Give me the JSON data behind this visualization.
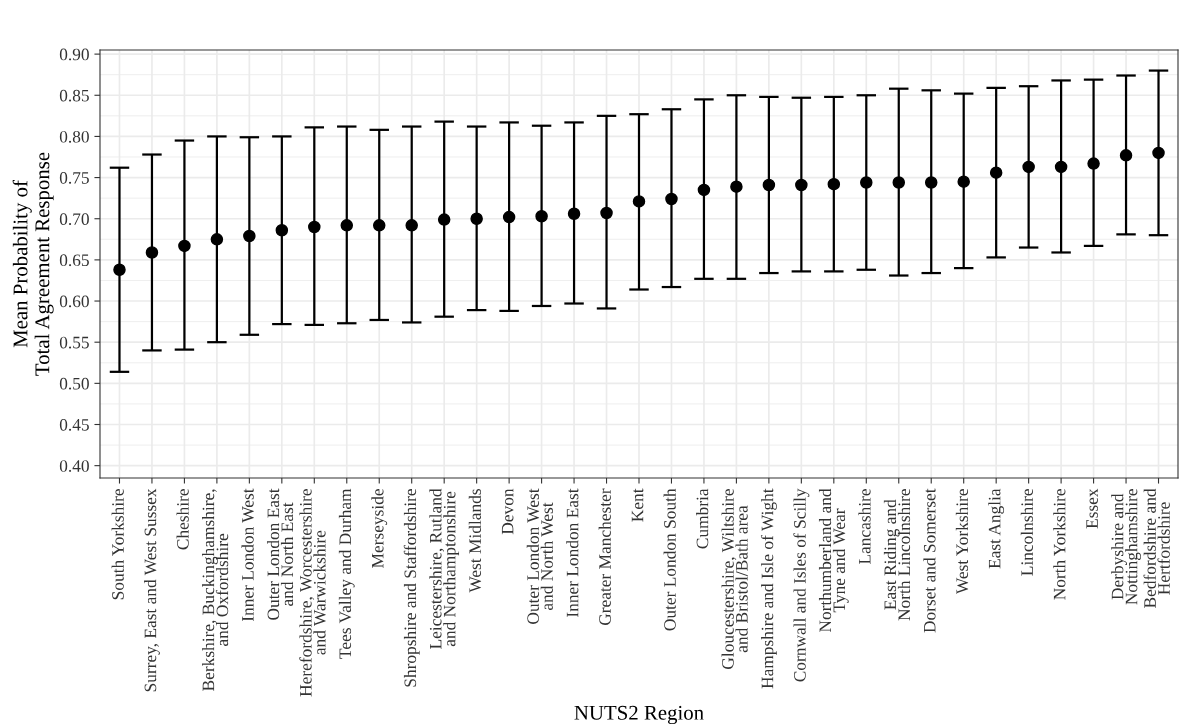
{
  "chart_data": {
    "type": "scatter",
    "xlabel": "NUTS2 Region",
    "ylabel": "Mean Probability of\nTotal Agreement Response",
    "categories": [
      "South Yorkshire",
      "Surrey, East and West Sussex",
      "Cheshire",
      "Berkshire, Buckinghamshire,\nand Oxfordshire",
      "Inner London West",
      "Outer London East\nand North East",
      "Herefordshire, Worcestershire\nand Warwickshire",
      "Tees Valley and Durham",
      "Merseyside",
      "Shropshire and Staffordshire",
      "Leicestershire, Rutland\nand Northamptonshire",
      "West Midlands",
      "Devon",
      "Outer London West\nand North West",
      "Inner London East",
      "Greater Manchester",
      "Kent",
      "Outer London South",
      "Cumbria",
      "Gloucestershire, Wiltshire\nand Bristol/Bath area",
      "Hampshire and Isle of Wight",
      "Cornwall and Isles of Scilly",
      "Northumberland and\nTyne and Wear",
      "Lancashire",
      "East Riding and\nNorth Lincolnshire",
      "Dorset and Somerset",
      "West Yorkshire",
      "East Anglia",
      "Lincolnshire",
      "North Yorkshire",
      "Essex",
      "Derbyshire and\nNottinghamshire",
      "Bedfordshire and\nHertfordshire"
    ],
    "series": [
      {
        "color": "#000000",
        "values": [
          0.638,
          0.659,
          0.667,
          0.675,
          0.679,
          0.686,
          0.69,
          0.692,
          0.692,
          0.692,
          0.699,
          0.7,
          0.702,
          0.703,
          0.706,
          0.707,
          0.721,
          0.724,
          0.735,
          0.739,
          0.741,
          0.741,
          0.742,
          0.744,
          0.744,
          0.744,
          0.745,
          0.756,
          0.763,
          0.763,
          0.767,
          0.777,
          0.78
        ],
        "errors": [
          [
            0.514,
            0.762
          ],
          [
            0.54,
            0.778
          ],
          [
            0.541,
            0.795
          ],
          [
            0.55,
            0.8
          ],
          [
            0.559,
            0.799
          ],
          [
            0.572,
            0.8
          ],
          [
            0.571,
            0.811
          ],
          [
            0.573,
            0.812
          ],
          [
            0.577,
            0.808
          ],
          [
            0.574,
            0.812
          ],
          [
            0.581,
            0.818
          ],
          [
            0.589,
            0.812
          ],
          [
            0.588,
            0.817
          ],
          [
            0.594,
            0.813
          ],
          [
            0.597,
            0.817
          ],
          [
            0.591,
            0.825
          ],
          [
            0.614,
            0.827
          ],
          [
            0.617,
            0.833
          ],
          [
            0.627,
            0.845
          ],
          [
            0.627,
            0.85
          ],
          [
            0.634,
            0.848
          ],
          [
            0.636,
            0.847
          ],
          [
            0.636,
            0.848
          ],
          [
            0.638,
            0.85
          ],
          [
            0.631,
            0.858
          ],
          [
            0.634,
            0.856
          ],
          [
            0.64,
            0.852
          ],
          [
            0.653,
            0.859
          ],
          [
            0.665,
            0.861
          ],
          [
            0.659,
            0.868
          ],
          [
            0.667,
            0.869
          ],
          [
            0.681,
            0.874
          ],
          [
            0.68,
            0.88
          ]
        ]
      }
    ],
    "ylim": [
      0.385,
      0.905
    ],
    "yticks": [
      {
        "value": 0.4,
        "label": "0.40"
      },
      {
        "value": 0.45,
        "label": "0.45"
      },
      {
        "value": 0.5,
        "label": "0.50"
      },
      {
        "value": 0.55,
        "label": "0.55"
      },
      {
        "value": 0.6,
        "label": "0.60"
      },
      {
        "value": 0.65,
        "label": "0.65"
      },
      {
        "value": 0.7,
        "label": "0.70"
      },
      {
        "value": 0.75,
        "label": "0.75"
      },
      {
        "value": 0.8,
        "label": "0.80"
      },
      {
        "value": 0.85,
        "label": "0.85"
      },
      {
        "value": 0.9,
        "label": "0.90"
      }
    ],
    "grid": true,
    "marker": "circle"
  }
}
